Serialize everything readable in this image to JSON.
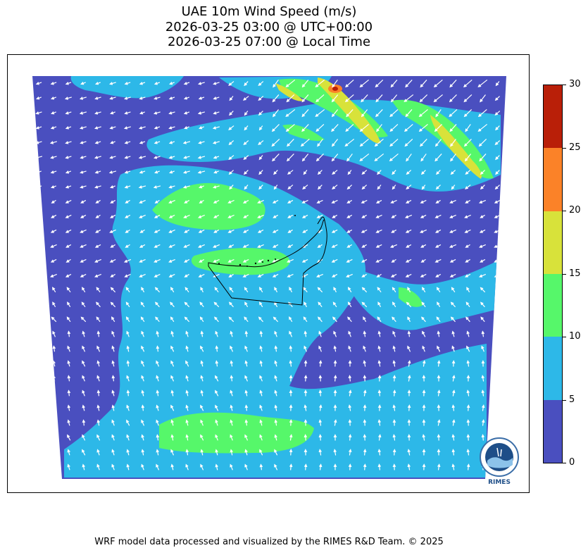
{
  "title": {
    "line1": "UAE 10m Wind Speed (m/s)",
    "line2": "2026-03-25 03:00 @ UTC+00:00",
    "line3": "2026-03-25 07:00 @ Local Time"
  },
  "colorbar": {
    "ticks": [
      "0",
      "5",
      "10",
      "15",
      "20",
      "25",
      "30"
    ],
    "colors": [
      "#4a4fbf",
      "#2db8e8",
      "#56f76a",
      "#d8e23a",
      "#fb8228",
      "#b91f08"
    ]
  },
  "credit": "WRF model data processed and visualized by the RIMES R&D Team. © 2025",
  "logo": {
    "text": "RIMES",
    "ring_text": "Regional Integrated Multi-Hazard Early Warning System"
  },
  "colors": {
    "low": "#4a4fbf",
    "mid": "#2db8e8",
    "high": "#56f76a",
    "vhigh": "#d8e23a",
    "extreme": "#fb8228",
    "max": "#b91f08",
    "arrow": "#ffffff",
    "border": "#000000"
  }
}
